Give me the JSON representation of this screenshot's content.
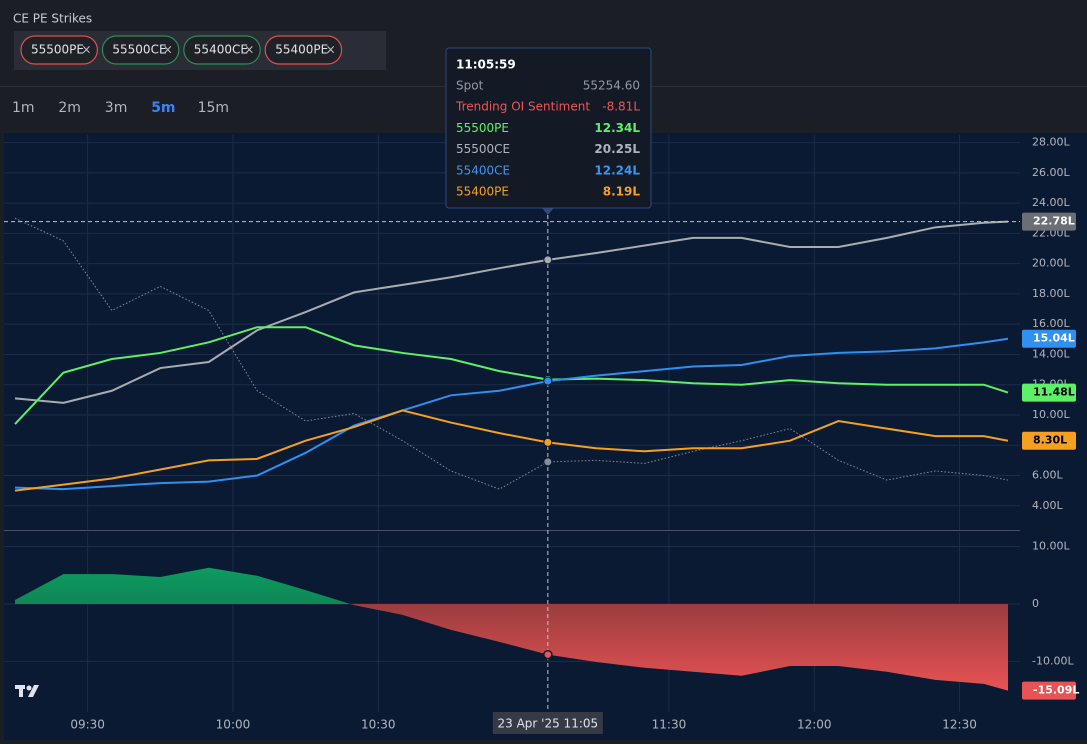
{
  "header": {
    "title": "CE PE Strikes",
    "chips": [
      {
        "label": "55500PE",
        "color": "#d9534f"
      },
      {
        "label": "55500CE",
        "color": "#2e8b57"
      },
      {
        "label": "55400CE",
        "color": "#2e8b57"
      },
      {
        "label": "55400PE",
        "color": "#d9534f"
      }
    ],
    "close": "×",
    "timeframes": [
      "1m",
      "2m",
      "3m",
      "5m",
      "15m"
    ],
    "active_timeframe": 3
  },
  "tooltip": {
    "time": "11:05:59",
    "rows": [
      {
        "label": "Spot",
        "value": "55254.60",
        "color": "#9598a1"
      },
      {
        "label": "Trending OI Sentiment",
        "value": "-8.81L",
        "color": "#f05454"
      },
      {
        "label": "55500PE",
        "value": "12.34L",
        "color": "#5ef068"
      },
      {
        "label": "55500CE",
        "value": "20.25L",
        "color": "#b0b3b8"
      },
      {
        "label": "55400CE",
        "value": "12.24L",
        "color": "#3a96f0"
      },
      {
        "label": "55400PE",
        "value": "8.19L",
        "color": "#f5a023"
      }
    ]
  },
  "crosshair": {
    "x": "11:05",
    "label": "23 Apr '25  11:05"
  },
  "chart_data": [
    {
      "type": "line",
      "x": [
        "09:15",
        "09:25",
        "09:35",
        "09:45",
        "09:55",
        "10:05",
        "10:15",
        "10:25",
        "10:35",
        "10:45",
        "10:55",
        "11:05",
        "11:15",
        "11:25",
        "11:35",
        "11:45",
        "11:55",
        "12:05",
        "12:15",
        "12:25",
        "12:35",
        "12:40"
      ],
      "xlim": [
        "09:15",
        "12:40"
      ],
      "xticks": [
        "09:30",
        "10:00",
        "10:30",
        "11:30",
        "12:00",
        "12:30"
      ],
      "ylim": [
        2.4,
        28.5
      ],
      "yticks": [
        {
          "value": 4,
          "label": "4.00L"
        },
        {
          "value": 6,
          "label": "6.00L"
        },
        {
          "value": 8,
          "label": "8.00L"
        },
        {
          "value": 10,
          "label": "10.00L"
        },
        {
          "value": 12,
          "label": "12.00L"
        },
        {
          "value": 14,
          "label": "14.00L"
        },
        {
          "value": 16,
          "label": "16.00L"
        },
        {
          "value": 18,
          "label": "18.00L"
        },
        {
          "value": 20,
          "label": "20.00L"
        },
        {
          "value": 22,
          "label": "22.00L"
        },
        {
          "value": 24,
          "label": "24.00L"
        },
        {
          "value": 26,
          "label": "26.00L"
        },
        {
          "value": 28,
          "label": "28.00L"
        }
      ],
      "grid": true,
      "series": [
        {
          "name": "Spot",
          "color": "#8a8d93",
          "dotted": true,
          "values": [
            23,
            21.5,
            16.9,
            18.5,
            16.9,
            11.6,
            9.6,
            10.1,
            8.3,
            6.3,
            5.1,
            6.9,
            7.0,
            6.8,
            7.6,
            8.3,
            9.1,
            7.0,
            5.7,
            6.3,
            6.0,
            5.7
          ]
        },
        {
          "name": "55500CE",
          "color": "#a9acb1",
          "last_label": "22.78L",
          "badge_color": "#6b6e74",
          "badge_text": "#ffffff",
          "values": [
            11.1,
            10.8,
            11.6,
            13.1,
            13.5,
            15.6,
            16.8,
            18.1,
            18.6,
            19.1,
            19.7,
            20.25,
            20.7,
            21.2,
            21.7,
            21.7,
            21.1,
            21.1,
            21.7,
            22.4,
            22.7,
            22.78
          ]
        },
        {
          "name": "55500PE",
          "color": "#5ef068",
          "last_label": "11.48L",
          "badge_color": "#5ef068",
          "badge_text": "#000000",
          "values": [
            9.4,
            12.8,
            13.7,
            14.1,
            14.8,
            15.8,
            15.8,
            14.6,
            14.1,
            13.7,
            12.9,
            12.34,
            12.4,
            12.3,
            12.1,
            12.0,
            12.3,
            12.1,
            12.0,
            12.0,
            12.0,
            11.48
          ]
        },
        {
          "name": "55400CE",
          "color": "#2e90f0",
          "last_label": "15.04L",
          "badge_color": "#2e90f0",
          "badge_text": "#ffffff",
          "values": [
            5.2,
            5.1,
            5.3,
            5.5,
            5.6,
            6.0,
            7.5,
            9.3,
            10.3,
            11.3,
            11.6,
            12.24,
            12.6,
            12.9,
            13.2,
            13.3,
            13.9,
            14.1,
            14.2,
            14.4,
            14.8,
            15.04
          ]
        },
        {
          "name": "55400PE",
          "color": "#f5a020",
          "last_label": "8.30L",
          "badge_color": "#f5a020",
          "badge_text": "#000000",
          "values": [
            5.0,
            5.4,
            5.8,
            6.4,
            7.0,
            7.1,
            8.3,
            9.2,
            10.3,
            9.5,
            8.8,
            8.19,
            7.8,
            7.6,
            7.8,
            7.8,
            8.3,
            9.6,
            9.1,
            8.6,
            8.6,
            8.3
          ]
        }
      ]
    },
    {
      "type": "area",
      "x": [
        "09:15",
        "09:25",
        "09:35",
        "09:45",
        "09:55",
        "10:05",
        "10:15",
        "10:25",
        "10:35",
        "10:45",
        "10:55",
        "11:05",
        "11:15",
        "11:25",
        "11:35",
        "11:45",
        "11:55",
        "12:05",
        "12:15",
        "12:25",
        "12:35",
        "12:40"
      ],
      "xlim": [
        "09:15",
        "12:40"
      ],
      "ylim": [
        -18.8,
        12.35
      ],
      "yticks": [
        {
          "value": -10,
          "label": "-10.00L"
        },
        0,
        {
          "value": 10,
          "label": "10.00L"
        }
      ],
      "grid": true,
      "colors": {
        "positive": "#0f9a60",
        "negative": "#e85353"
      },
      "last_label": "-15.09L",
      "values": [
        0.7,
        5.2,
        5.2,
        4.7,
        6.3,
        4.9,
        2.4,
        -0.2,
        -1.9,
        -4.5,
        -6.6,
        -8.81,
        -10.1,
        -11.1,
        -11.8,
        -12.5,
        -10.8,
        -10.8,
        -11.8,
        -13.2,
        -13.9,
        -15.09
      ]
    }
  ]
}
